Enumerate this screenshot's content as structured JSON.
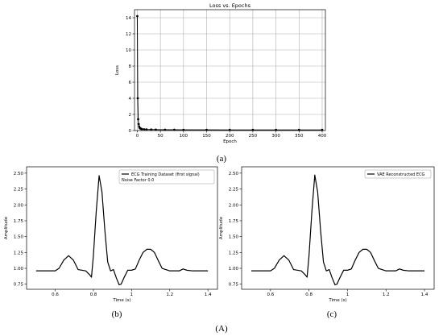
{
  "captions": {
    "a": "(a)",
    "b": "(b)",
    "c": "(c)",
    "A": "(A)"
  },
  "colors": {
    "line": "#000000",
    "grid": "#b0b0b0",
    "frame": "#000000"
  },
  "chart_data": [
    {
      "id": "loss",
      "type": "line",
      "title": "Loss vs. Epochs",
      "xlabel": "Epoch",
      "ylabel": "Loss",
      "xlim": [
        -6,
        407
      ],
      "ylim": [
        0,
        15
      ],
      "xticks": [
        0,
        50,
        100,
        150,
        200,
        250,
        300,
        350,
        400
      ],
      "yticks": [
        0,
        2,
        4,
        6,
        8,
        10,
        12,
        14
      ],
      "grid": true,
      "markers": true,
      "series": [
        {
          "x": [
            0,
            1,
            2,
            3,
            4,
            5,
            6,
            8,
            10,
            15,
            20,
            30,
            40,
            60,
            80,
            100,
            150,
            200,
            250,
            300,
            350,
            400
          ],
          "y": [
            14.2,
            4.0,
            1.4,
            0.8,
            0.5,
            0.35,
            0.28,
            0.22,
            0.18,
            0.15,
            0.13,
            0.12,
            0.11,
            0.1,
            0.1,
            0.09,
            0.09,
            0.08,
            0.08,
            0.08,
            0.08,
            0.08
          ]
        }
      ]
    },
    {
      "id": "ecg_input",
      "type": "line",
      "title": "",
      "xlabel": "Time (s)",
      "ylabel": "Amplitude",
      "xlim": [
        0.45,
        1.45
      ],
      "ylim": [
        0.67,
        2.6
      ],
      "xticks": [
        0.6,
        0.8,
        1.0,
        1.2,
        1.4
      ],
      "ytick_labels": [
        "0.75",
        "1.00",
        "1.25",
        "1.50",
        "1.75",
        "2.00",
        "2.25",
        "2.50"
      ],
      "grid": false,
      "legend": {
        "position": "top-right",
        "line1": "ECG Training Dataset (first signal)",
        "line2": "Noise Factor 0.0"
      },
      "series": [
        {
          "name": "ECG Training Dataset (first signal)",
          "x": [
            0.5,
            0.6,
            0.62,
            0.645,
            0.67,
            0.695,
            0.72,
            0.76,
            0.78,
            0.79,
            0.8,
            0.815,
            0.83,
            0.845,
            0.86,
            0.875,
            0.89,
            0.905,
            0.92,
            0.935,
            0.945,
            0.96,
            0.98,
            1.0,
            1.02,
            1.04,
            1.06,
            1.08,
            1.1,
            1.12,
            1.14,
            1.16,
            1.2,
            1.25,
            1.27,
            1.29,
            1.32,
            1.4
          ],
          "y": [
            0.96,
            0.96,
            1.0,
            1.13,
            1.2,
            1.13,
            0.98,
            0.96,
            0.9,
            0.86,
            1.2,
            1.9,
            2.46,
            2.2,
            1.6,
            1.1,
            0.96,
            0.98,
            0.85,
            0.74,
            0.75,
            0.85,
            0.97,
            0.97,
            0.99,
            1.13,
            1.25,
            1.3,
            1.3,
            1.25,
            1.12,
            1.0,
            0.96,
            0.96,
            0.99,
            0.97,
            0.96,
            0.96
          ]
        }
      ]
    },
    {
      "id": "ecg_recon",
      "type": "line",
      "title": "",
      "xlabel": "Time (s)",
      "ylabel": "Amplitude",
      "xlim": [
        0.45,
        1.45
      ],
      "ylim": [
        0.67,
        2.6
      ],
      "xticks": [
        0.6,
        0.8,
        1.0,
        1.2,
        1.4
      ],
      "ytick_labels": [
        "0.75",
        "1.00",
        "1.25",
        "1.50",
        "1.75",
        "2.00",
        "2.25",
        "2.50"
      ],
      "grid": false,
      "legend": {
        "position": "top-right",
        "line1": "VAE Reconstructed ECG",
        "line2": ""
      },
      "series": [
        {
          "name": "VAE Reconstructed ECG",
          "x": [
            0.5,
            0.6,
            0.62,
            0.645,
            0.67,
            0.695,
            0.72,
            0.76,
            0.78,
            0.79,
            0.8,
            0.815,
            0.83,
            0.845,
            0.86,
            0.875,
            0.89,
            0.905,
            0.92,
            0.935,
            0.945,
            0.96,
            0.98,
            1.0,
            1.02,
            1.04,
            1.06,
            1.08,
            1.1,
            1.12,
            1.14,
            1.16,
            1.2,
            1.25,
            1.27,
            1.29,
            1.32,
            1.4
          ],
          "y": [
            0.96,
            0.96,
            1.0,
            1.13,
            1.2,
            1.13,
            0.98,
            0.96,
            0.9,
            0.86,
            1.2,
            1.9,
            2.47,
            2.2,
            1.6,
            1.1,
            0.96,
            0.98,
            0.85,
            0.74,
            0.75,
            0.85,
            0.97,
            0.97,
            0.99,
            1.13,
            1.25,
            1.3,
            1.3,
            1.25,
            1.12,
            1.0,
            0.96,
            0.96,
            0.99,
            0.97,
            0.96,
            0.96
          ]
        }
      ]
    }
  ]
}
